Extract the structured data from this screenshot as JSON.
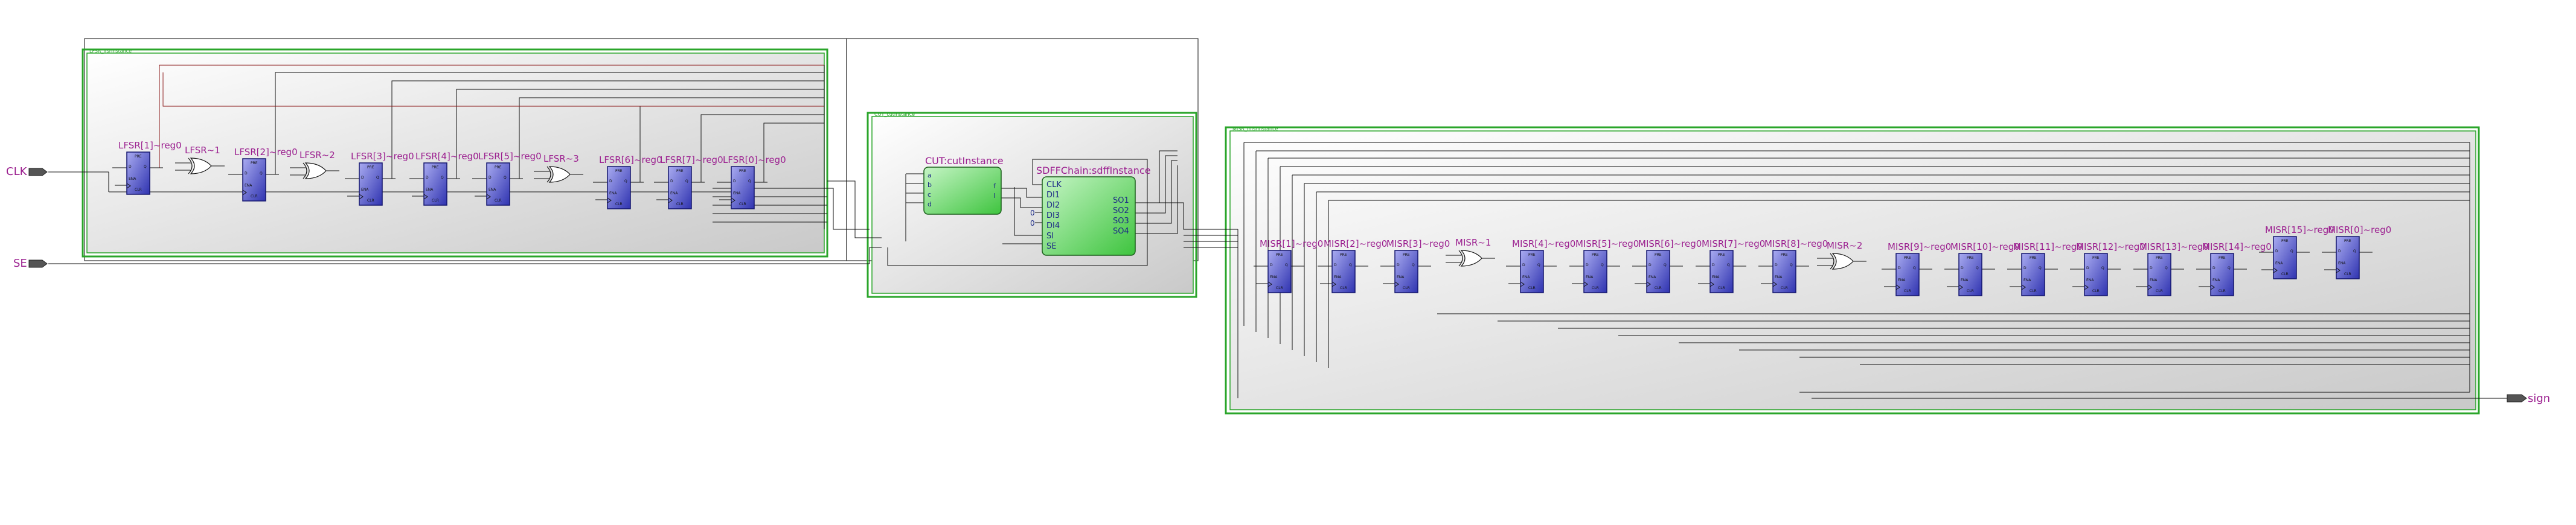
{
  "ports": {
    "clk": "CLK",
    "se": "SE",
    "sign": "sign"
  },
  "blocks": {
    "lfsr_instance": "LFSR_lfsrInstance",
    "cut_wrapper": "CUT_cutInstance",
    "misr_instance": "MISR_misrInstance"
  },
  "lfsr_regs": [
    "LFSR[1]~reg0",
    "LFSR[2]~reg0",
    "LFSR[3]~reg0",
    "LFSR[4]~reg0",
    "LFSR[5]~reg0",
    "LFSR[6]~reg0",
    "LFSR[7]~reg0",
    "LFSR[0]~reg0"
  ],
  "lfsr_xors": [
    "LFSR~1",
    "LFSR~2",
    "LFSR~3"
  ],
  "cut": {
    "cut_title": "CUT:cutInstance",
    "cut_pins": [
      "a",
      "b",
      "c",
      "d"
    ],
    "cut_out_pins": [
      "f",
      "l"
    ],
    "sdff_title": "SDFFChain:sdffInstance",
    "sdff_in_pins": [
      "CLK",
      "DI1",
      "DI2",
      "DI3",
      "DI4",
      "SI",
      "SE"
    ],
    "sdff_out_pins": [
      "SO1",
      "SO2",
      "SO3",
      "SO4"
    ],
    "const_labels": [
      "0",
      "0"
    ]
  },
  "misr_regs": [
    "MISR[1]~reg0",
    "MISR[2]~reg0",
    "MISR[3]~reg0",
    "MISR[4]~reg0",
    "MISR[5]~reg0",
    "MISR[6]~reg0",
    "MISR[7]~reg0",
    "MISR[8]~reg0",
    "MISR[9]~reg0",
    "MISR[10]~reg0",
    "MISR[11]~reg0",
    "MISR[12]~reg0",
    "MISR[13]~reg0",
    "MISR[14]~reg0",
    "MISR[15]~reg0",
    "MISR[0]~reg0"
  ],
  "misr_xors": [
    "MISR~1",
    "MISR~2"
  ],
  "reg_pins": [
    "PRE",
    "D",
    "Q",
    "ENA",
    "CLR"
  ],
  "colors": {
    "block_border": "#2aa52a",
    "reg_fill": "#5b5fd6",
    "cut_fill": "#7be37b",
    "label": "#9b1f8f",
    "wire": "#000000",
    "wire_red": "#8b1a1a"
  }
}
